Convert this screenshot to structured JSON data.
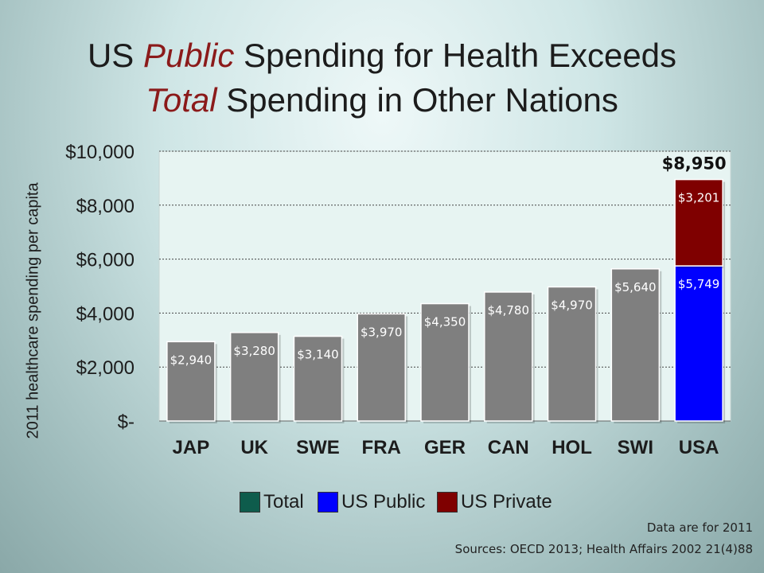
{
  "title": {
    "line1_prefix": "US ",
    "line1_emph": "Public",
    "line1_suffix": " Spending for Health Exceeds",
    "line2_emph": "Total",
    "line2_suffix": " Spending in Other Nations"
  },
  "colors": {
    "total": "#7f7f7f",
    "us_public": "#0000ff",
    "us_private": "#7f0000",
    "legend_total": "#0e5c4c",
    "plot_bg": "#e7f4f2",
    "title_emph": "#8b1a1a"
  },
  "chart_data": {
    "type": "bar",
    "stacked": true,
    "categories": [
      "JAP",
      "UK",
      "SWE",
      "FRA",
      "GER",
      "CAN",
      "HOL",
      "SWI",
      "USA"
    ],
    "series": [
      {
        "name": "Total",
        "values": [
          2940,
          3280,
          3140,
          3970,
          4350,
          4780,
          4970,
          5640,
          null
        ],
        "labels": [
          "$2,940",
          "$3,280",
          "$3,140",
          "$3,970",
          "$4,350",
          "$4,780",
          "$4,970",
          "$5,640",
          null
        ]
      },
      {
        "name": "US Public",
        "values": [
          null,
          null,
          null,
          null,
          null,
          null,
          null,
          null,
          5749
        ],
        "labels": [
          null,
          null,
          null,
          null,
          null,
          null,
          null,
          null,
          "$5,749"
        ]
      },
      {
        "name": "US Private",
        "values": [
          null,
          null,
          null,
          null,
          null,
          null,
          null,
          null,
          3201
        ],
        "labels": [
          null,
          null,
          null,
          null,
          null,
          null,
          null,
          null,
          "$3,201"
        ]
      }
    ],
    "annotations": [
      {
        "category": "USA",
        "text": "$8,950",
        "value": 8950
      }
    ],
    "ylabel": "2011 healthcare spending per capita",
    "xlabel": "",
    "ylim": [
      0,
      10000
    ],
    "yticks": [
      0,
      2000,
      4000,
      6000,
      8000,
      10000
    ],
    "ytick_labels": [
      "$-",
      "$2,000",
      "$4,000",
      "$6,000",
      "$8,000",
      "$10,000"
    ],
    "grid": true,
    "legend_position": "bottom"
  },
  "legend": [
    {
      "label": "Total",
      "color": "#0e5c4c"
    },
    {
      "label": "US Public",
      "color": "#0000ff"
    },
    {
      "label": "US Private",
      "color": "#7f0000"
    }
  ],
  "notes": {
    "data_year": "Data are for 2011",
    "sources": "Sources: OECD 2013; Health Affairs 2002 21(4)88"
  }
}
